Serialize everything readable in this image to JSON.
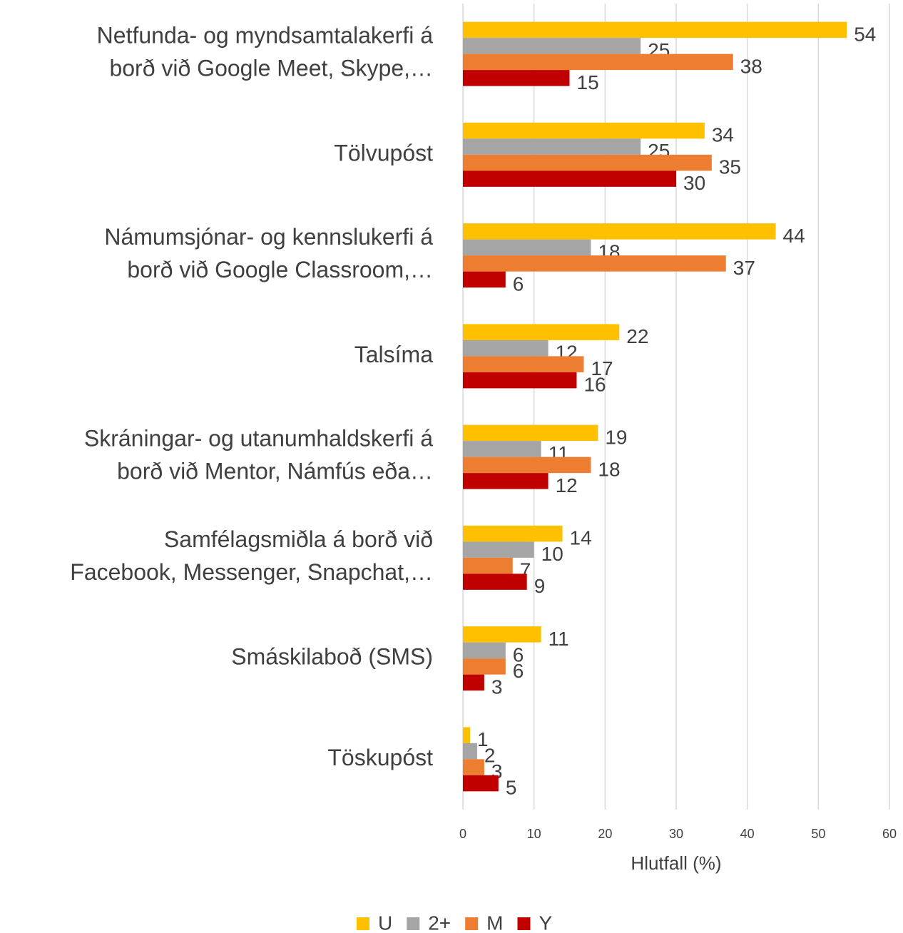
{
  "chart_data": {
    "type": "bar",
    "orientation": "horizontal",
    "categories": [
      "Netfunda- og myndsamtalakerfi á\nborð við Google Meet, Skype,…",
      "Tölvupóst",
      "Námumsjónar- og kennslukerfi á\nborð við Google Classroom,…",
      "Talsíma",
      "Skráningar- og utanumhaldskerfi á\nborð við Mentor, Námfús eða…",
      "Samfélagsmiðla á borð við\nFacebook, Messenger, Snapchat,…",
      "Smáskilaboð (SMS)",
      "Töskupóst"
    ],
    "series": [
      {
        "name": "U",
        "color": "#FFC000",
        "values": [
          54,
          34,
          44,
          22,
          19,
          14,
          11,
          1
        ]
      },
      {
        "name": "2+",
        "color": "#A5A5A5",
        "values": [
          25,
          25,
          18,
          12,
          11,
          10,
          6,
          2
        ]
      },
      {
        "name": "M",
        "color": "#ED7D31",
        "values": [
          38,
          35,
          37,
          17,
          18,
          7,
          6,
          3
        ]
      },
      {
        "name": "Y",
        "color": "#C00000",
        "values": [
          15,
          30,
          6,
          16,
          12,
          9,
          3,
          5
        ]
      }
    ],
    "xlabel": "Hlutfall (%)",
    "xlim": [
      0,
      60
    ],
    "xticks": [
      0,
      10,
      20,
      30,
      40,
      50,
      60
    ],
    "grid": true,
    "legend": "bottom"
  }
}
